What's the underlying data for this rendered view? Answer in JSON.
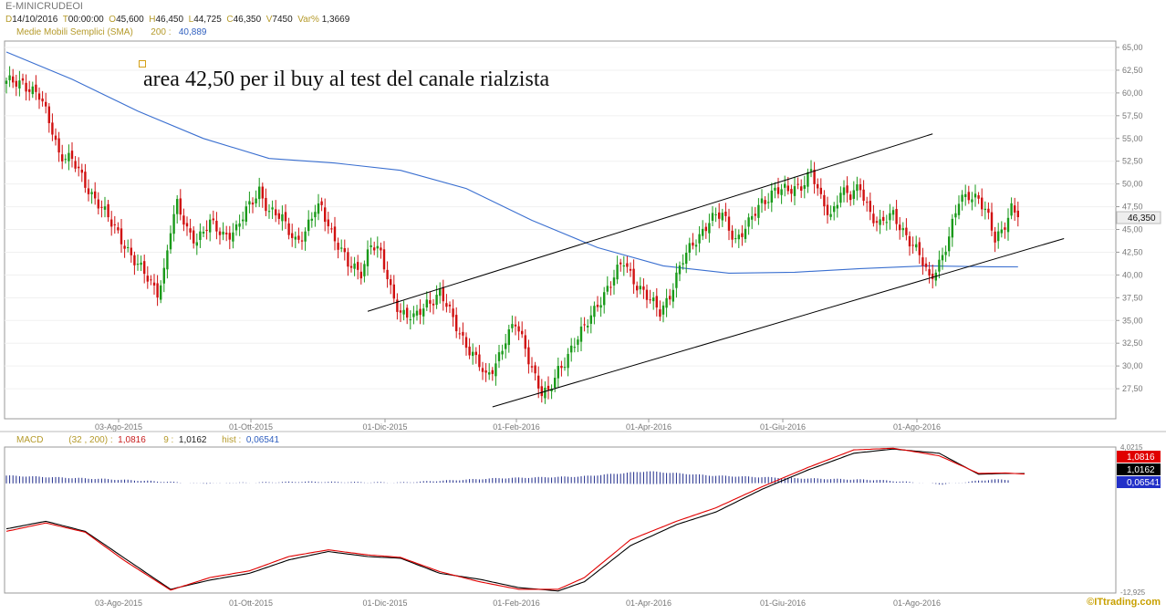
{
  "header": {
    "symbol": "E-MINICRUDEOI",
    "ohlc": [
      {
        "key": "D",
        "value": "14/10/2016"
      },
      {
        "key": "T",
        "value": "00:00:00"
      },
      {
        "key": "O",
        "value": "45,600"
      },
      {
        "key": "H",
        "value": "46,450"
      },
      {
        "key": "L",
        "value": "44,725"
      },
      {
        "key": "C",
        "value": "46,350"
      },
      {
        "key": "V",
        "value": "7450"
      },
      {
        "key": "Var%",
        "value": "1,3669"
      }
    ],
    "sma_label": "Medie Mobili Semplici (SMA)",
    "sma_period": "200 :",
    "sma_value": "40,889",
    "macd_label": "MACD",
    "macd_params": "(32 , 200) :",
    "macd_value": "1,0816",
    "signal_period": "9 :",
    "signal_value": "1,0162",
    "hist_label": "hist :",
    "hist_value": "0,06541"
  },
  "annotation": "area 42,50 per il buy al test del canale rialzista",
  "logo": "©ITtrading.com",
  "colors": {
    "sma": "#3a6fd0",
    "macd": "#000000",
    "signal": "#e00000",
    "hist": "#1e2a8a",
    "up": "#1a9a1a",
    "down": "#d01010",
    "grid": "#dddddd"
  },
  "chart_data": [
    {
      "type": "candlestick",
      "x_ticks": [
        "03-Ago-2015",
        "01-Ott-2015",
        "01-Dic-2015",
        "01-Feb-2016",
        "01-Apr-2016",
        "01-Giu-2016",
        "01-Ago-2016"
      ],
      "y_ticks": [
        "65,00",
        "62,50",
        "60,00",
        "57,50",
        "55,00",
        "52,50",
        "50,00",
        "47,50",
        "45,00",
        "42,50",
        "40,00",
        "37,50",
        "35,00",
        "32,50",
        "30,00",
        "27,50"
      ],
      "ylim": [
        25,
        65
      ],
      "last_price_label": "46,350",
      "last_price": 46.35,
      "close_path": [
        [
          0,
          61.0
        ],
        [
          5,
          61.3
        ],
        [
          10,
          59.5
        ],
        [
          14,
          56.0
        ],
        [
          16,
          53.5
        ],
        [
          20,
          52.5
        ],
        [
          24,
          50.0
        ],
        [
          28,
          48.0
        ],
        [
          32,
          45.5
        ],
        [
          36,
          43.5
        ],
        [
          40,
          41.0
        ],
        [
          44,
          39.0
        ],
        [
          46,
          38.3
        ],
        [
          48,
          40.5
        ],
        [
          50,
          45.0
        ],
        [
          52,
          47.5
        ],
        [
          55,
          45.0
        ],
        [
          58,
          44.0
        ],
        [
          62,
          45.5
        ],
        [
          66,
          44.5
        ],
        [
          70,
          45.0
        ],
        [
          74,
          47.5
        ],
        [
          77,
          49.5
        ],
        [
          80,
          47.0
        ],
        [
          84,
          46.0
        ],
        [
          88,
          44.0
        ],
        [
          91,
          44.5
        ],
        [
          94,
          47.0
        ],
        [
          96,
          47.5
        ],
        [
          100,
          44.0
        ],
        [
          104,
          41.0
        ],
        [
          108,
          40.5
        ],
        [
          111,
          43.5
        ],
        [
          114,
          42.0
        ],
        [
          117,
          38.5
        ],
        [
          120,
          36.0
        ],
        [
          124,
          35.0
        ],
        [
          128,
          37.0
        ],
        [
          132,
          38.0
        ],
        [
          136,
          35.0
        ],
        [
          140,
          32.5
        ],
        [
          144,
          30.0
        ],
        [
          146,
          28.5
        ],
        [
          149,
          30.5
        ],
        [
          152,
          33.0
        ],
        [
          155,
          34.5
        ],
        [
          158,
          32.0
        ],
        [
          161,
          29.0
        ],
        [
          163,
          27.0
        ],
        [
          165,
          26.8
        ],
        [
          168,
          29.5
        ],
        [
          172,
          32.0
        ],
        [
          176,
          34.0
        ],
        [
          180,
          37.0
        ],
        [
          184,
          39.0
        ],
        [
          188,
          41.5
        ],
        [
          192,
          39.0
        ],
        [
          196,
          37.0
        ],
        [
          199,
          36.0
        ],
        [
          202,
          38.0
        ],
        [
          206,
          41.5
        ],
        [
          210,
          44.0
        ],
        [
          214,
          46.0
        ],
        [
          218,
          46.5
        ],
        [
          222,
          44.0
        ],
        [
          226,
          45.5
        ],
        [
          230,
          48.0
        ],
        [
          234,
          49.5
        ],
        [
          238,
          49.0
        ],
        [
          242,
          50.0
        ],
        [
          245,
          51.5
        ],
        [
          248,
          48.0
        ],
        [
          251,
          46.5
        ],
        [
          254,
          49.5
        ],
        [
          257,
          48.5
        ],
        [
          260,
          49.5
        ],
        [
          263,
          47.0
        ],
        [
          266,
          45.5
        ],
        [
          270,
          46.5
        ],
        [
          274,
          44.5
        ],
        [
          278,
          42.0
        ],
        [
          281,
          39.5
        ],
        [
          284,
          41.5
        ],
        [
          287,
          44.0
        ],
        [
          290,
          48.0
        ],
        [
          293,
          49.0
        ],
        [
          296,
          48.5
        ],
        [
          299,
          46.0
        ],
        [
          301,
          43.8
        ],
        [
          303,
          45.0
        ],
        [
          306,
          47.5
        ],
        [
          308,
          46.35
        ]
      ],
      "series": [
        {
          "name": "Medie Mobili Semplici (SMA)",
          "period": 200,
          "last_value": 40.889,
          "points": [
            [
              0,
              64.5
            ],
            [
              20,
              61.5
            ],
            [
              40,
              58.0
            ],
            [
              60,
              55.0
            ],
            [
              80,
              52.8
            ],
            [
              100,
              52.3
            ],
            [
              120,
              51.5
            ],
            [
              140,
              49.5
            ],
            [
              160,
              46.0
            ],
            [
              180,
              43.0
            ],
            [
              200,
              41.0
            ],
            [
              220,
              40.2
            ],
            [
              240,
              40.3
            ],
            [
              260,
              40.7
            ],
            [
              280,
              41.0
            ],
            [
              300,
              40.9
            ],
            [
              308,
              40.889
            ]
          ]
        }
      ],
      "trendlines": [
        {
          "name": "upper",
          "from": [
            110,
            36.0
          ],
          "to": [
            282,
            55.5
          ]
        },
        {
          "name": "lower",
          "from": [
            148,
            25.5
          ],
          "to": [
            322,
            44.0
          ]
        }
      ]
    },
    {
      "type": "line",
      "title": "MACD",
      "params": "(32 , 200)",
      "ylim": [
        -12.925,
        4.0215
      ],
      "y_ticks": [
        "4,0215",
        "-12,925"
      ],
      "value_labels": [
        "1,0816",
        "1,0162",
        "0,06541"
      ],
      "series": [
        {
          "name": "MACD",
          "values": [
            [
              0,
              -5.5
            ],
            [
              12,
              -4.6
            ],
            [
              24,
              -5.8
            ],
            [
              36,
              -9.0
            ],
            [
              50,
              -12.7
            ],
            [
              62,
              -11.6
            ],
            [
              74,
              -10.8
            ],
            [
              86,
              -9.2
            ],
            [
              98,
              -8.2
            ],
            [
              110,
              -8.8
            ],
            [
              120,
              -9.0
            ],
            [
              132,
              -10.8
            ],
            [
              144,
              -11.5
            ],
            [
              156,
              -12.5
            ],
            [
              168,
              -12.9
            ],
            [
              176,
              -11.8
            ],
            [
              190,
              -7.5
            ],
            [
              204,
              -5.0
            ],
            [
              216,
              -3.5
            ],
            [
              230,
              -0.8
            ],
            [
              244,
              1.5
            ],
            [
              258,
              3.5
            ],
            [
              270,
              4.0
            ],
            [
              284,
              3.5
            ],
            [
              296,
              1.0
            ],
            [
              304,
              1.1
            ],
            [
              310,
              1.08
            ]
          ]
        },
        {
          "name": "signal",
          "values": [
            [
              0,
              -5.8
            ],
            [
              12,
              -4.8
            ],
            [
              24,
              -5.9
            ],
            [
              36,
              -9.3
            ],
            [
              50,
              -12.8
            ],
            [
              62,
              -11.3
            ],
            [
              74,
              -10.5
            ],
            [
              86,
              -8.8
            ],
            [
              98,
              -8.0
            ],
            [
              110,
              -8.6
            ],
            [
              120,
              -8.9
            ],
            [
              132,
              -10.6
            ],
            [
              144,
              -11.8
            ],
            [
              156,
              -12.7
            ],
            [
              168,
              -12.7
            ],
            [
              176,
              -11.3
            ],
            [
              190,
              -6.8
            ],
            [
              204,
              -4.6
            ],
            [
              216,
              -3.0
            ],
            [
              230,
              -0.5
            ],
            [
              244,
              1.8
            ],
            [
              258,
              3.9
            ],
            [
              270,
              4.1
            ],
            [
              284,
              3.2
            ],
            [
              296,
              1.1
            ],
            [
              304,
              1.15
            ],
            [
              310,
              1.02
            ]
          ]
        },
        {
          "name": "hist",
          "values": [
            [
              0,
              0.6
            ],
            [
              30,
              0.2
            ],
            [
              60,
              -0.3
            ],
            [
              90,
              -0.1
            ],
            [
              120,
              -0.2
            ],
            [
              150,
              0.3
            ],
            [
              175,
              0.5
            ],
            [
              195,
              1.1
            ],
            [
              215,
              0.6
            ],
            [
              240,
              0.3
            ],
            [
              265,
              0.1
            ],
            [
              285,
              -0.4
            ],
            [
              300,
              0.15
            ],
            [
              310,
              0.065
            ]
          ]
        }
      ]
    }
  ]
}
